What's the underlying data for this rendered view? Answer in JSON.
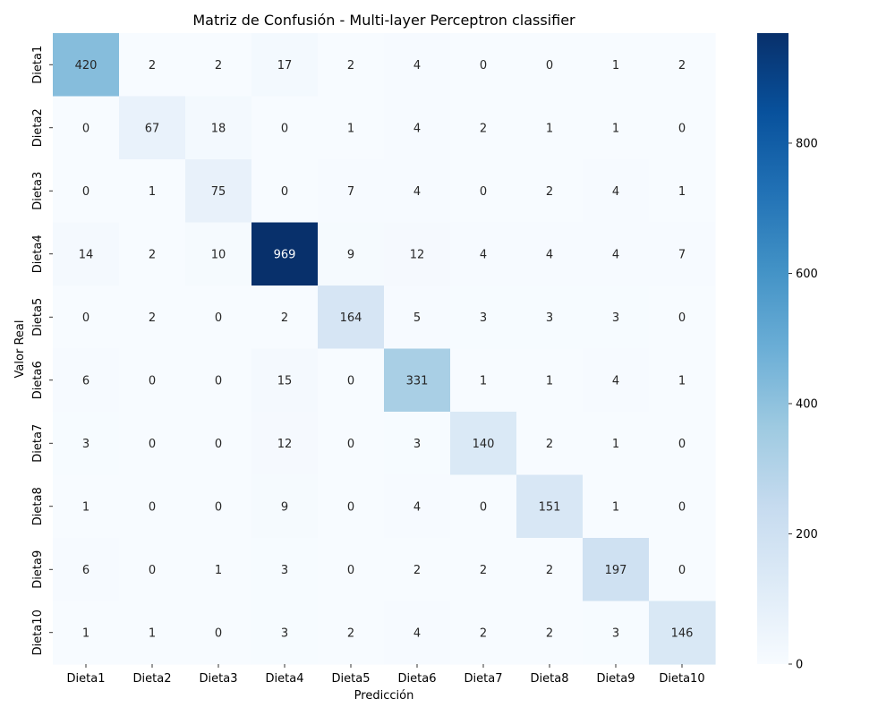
{
  "chart_data": {
    "type": "heatmap",
    "title": "Matriz de Confusión - Multi-layer Perceptron classifier",
    "xlabel": "Predicción",
    "ylabel": "Valor Real",
    "x_categories": [
      "Dieta1",
      "Dieta2",
      "Dieta3",
      "Dieta4",
      "Dieta5",
      "Dieta6",
      "Dieta7",
      "Dieta8",
      "Dieta9",
      "Dieta10"
    ],
    "y_categories": [
      "Dieta1",
      "Dieta2",
      "Dieta3",
      "Dieta4",
      "Dieta5",
      "Dieta6",
      "Dieta7",
      "Dieta8",
      "Dieta9",
      "Dieta10"
    ],
    "values": [
      [
        420,
        2,
        2,
        17,
        2,
        4,
        0,
        0,
        1,
        2
      ],
      [
        0,
        67,
        18,
        0,
        1,
        4,
        2,
        1,
        1,
        0
      ],
      [
        0,
        1,
        75,
        0,
        7,
        4,
        0,
        2,
        4,
        1
      ],
      [
        14,
        2,
        10,
        969,
        9,
        12,
        4,
        4,
        4,
        7
      ],
      [
        0,
        2,
        0,
        2,
        164,
        5,
        3,
        3,
        3,
        0
      ],
      [
        6,
        0,
        0,
        15,
        0,
        331,
        1,
        1,
        4,
        1
      ],
      [
        3,
        0,
        0,
        12,
        0,
        3,
        140,
        2,
        1,
        0
      ],
      [
        1,
        0,
        0,
        9,
        0,
        4,
        0,
        151,
        1,
        0
      ],
      [
        6,
        0,
        1,
        3,
        0,
        2,
        2,
        2,
        197,
        0
      ],
      [
        1,
        1,
        0,
        3,
        2,
        4,
        2,
        2,
        3,
        146
      ]
    ],
    "colorbar": {
      "colormap": "Blues",
      "range": [
        0,
        969
      ],
      "ticks": [
        0,
        200,
        400,
        600,
        800
      ]
    }
  }
}
